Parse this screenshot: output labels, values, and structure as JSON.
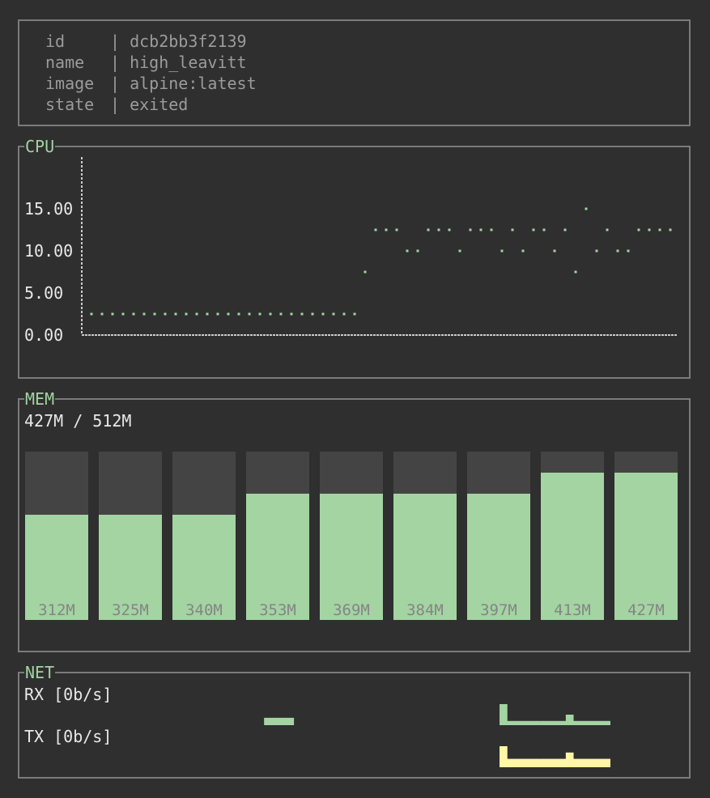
{
  "info": {
    "rows": [
      {
        "key": "id",
        "value": "dcb2bb3f2139"
      },
      {
        "key": "name",
        "value": "high_leavitt"
      },
      {
        "key": "image",
        "value": "alpine:latest"
      },
      {
        "key": "state",
        "value": "exited"
      }
    ]
  },
  "cpu": {
    "title": "CPU"
  },
  "mem": {
    "title": "MEM",
    "summary": "427M / 512M"
  },
  "net": {
    "title": "NET",
    "rx_label": "RX [0b/s]",
    "tx_label": "TX [0b/s]"
  },
  "colors": {
    "accent": "#a3d4a2",
    "tx": "#fff7a6",
    "bar_bg": "#444444",
    "border": "#7b7b7b",
    "dim_text": "#9b9b9b"
  },
  "chart_data": [
    {
      "type": "scatter",
      "title": "CPU",
      "yticks": [
        "15.00",
        "10.00",
        "5.00",
        "0.00"
      ],
      "ylim": [
        0,
        20
      ],
      "y": [
        2.5,
        2.5,
        2.5,
        2.5,
        2.5,
        2.5,
        2.5,
        2.5,
        2.5,
        2.5,
        2.5,
        2.5,
        2.5,
        2.5,
        2.5,
        2.5,
        2.5,
        2.5,
        2.5,
        2.5,
        2.5,
        2.5,
        2.5,
        2.5,
        2.5,
        2.5,
        7.5,
        12.5,
        12.5,
        12.5,
        10,
        10,
        12.5,
        12.5,
        12.5,
        10,
        12.5,
        12.5,
        12.5,
        10,
        12.5,
        10,
        12.5,
        12.5,
        10,
        12.5,
        7.5,
        15,
        10,
        12.5,
        10,
        10,
        12.5,
        12.5,
        12.5,
        12.5
      ]
    },
    {
      "type": "bar",
      "title": "MEM",
      "categories": [
        "312M",
        "325M",
        "340M",
        "353M",
        "369M",
        "384M",
        "397M",
        "413M",
        "427M"
      ],
      "values": [
        312,
        325,
        340,
        353,
        369,
        384,
        397,
        413,
        427
      ],
      "fill_levels": [
        0.625,
        0.625,
        0.625,
        0.75,
        0.75,
        0.75,
        0.75,
        0.875,
        0.875
      ],
      "max": 512
    },
    {
      "type": "bar",
      "title": "NET",
      "rx": [
        0,
        0,
        0,
        0,
        0,
        0,
        0,
        0,
        0,
        0,
        0,
        0,
        0,
        0,
        0,
        0,
        0,
        0,
        0,
        0,
        0,
        0,
        0,
        0,
        0.35,
        0.35,
        0.35,
        0.35,
        0,
        0,
        0,
        0,
        0,
        0,
        0,
        0,
        0,
        0,
        0,
        0,
        0,
        0,
        0,
        0,
        0,
        0,
        0,
        0,
        0,
        0,
        0,
        0,
        0,
        0,
        0,
        0,
        1,
        0.2,
        0.2,
        0.2,
        0.2,
        0.2,
        0.2,
        0.2,
        0.2,
        0.5,
        0.2,
        0.2,
        0.2,
        0.2,
        0.2
      ],
      "tx": [
        0,
        0,
        0,
        0,
        0,
        0,
        0,
        0,
        0,
        0,
        0,
        0,
        0,
        0,
        0,
        0,
        0,
        0,
        0,
        0,
        0,
        0,
        0,
        0,
        0,
        0,
        0,
        0,
        0,
        0,
        0,
        0,
        0,
        0,
        0,
        0,
        0,
        0,
        0,
        0,
        0,
        0,
        0,
        0,
        0,
        0,
        0,
        0,
        0,
        0,
        0,
        0,
        0,
        0,
        0,
        0,
        1,
        0.4,
        0.4,
        0.4,
        0.4,
        0.4,
        0.4,
        0.4,
        0.4,
        0.7,
        0.4,
        0.4,
        0.4,
        0.4,
        0.4
      ]
    }
  ]
}
